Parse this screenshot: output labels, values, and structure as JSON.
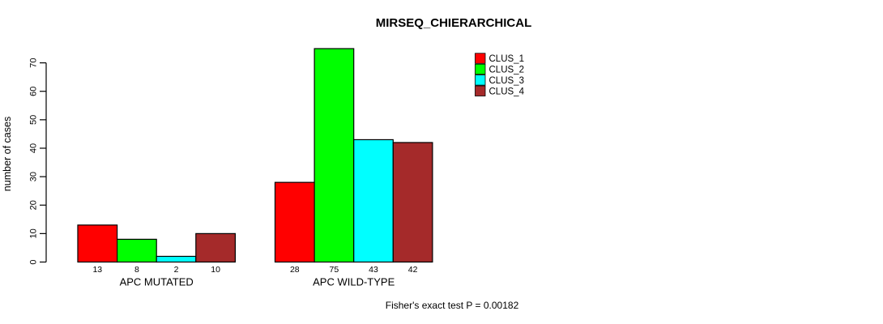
{
  "figure": {
    "background": "#FFFFFF",
    "text_color": "#000000",
    "bar_border_color": "#000000"
  },
  "chart_data": {
    "type": "bar",
    "title": "MIRSEQ_CHIERARCHICAL",
    "ylabel": "number of cases",
    "xlabel": "",
    "ylim": [
      0,
      75
    ],
    "yticks": [
      0,
      10,
      20,
      30,
      40,
      50,
      60,
      70
    ],
    "grid": false,
    "categories": [
      "APC MUTATED",
      "APC WILD-TYPE"
    ],
    "series": [
      {
        "name": "CLUS_1",
        "color": "#FF0000",
        "values": [
          13,
          28
        ]
      },
      {
        "name": "CLUS_2",
        "color": "#00FF00",
        "values": [
          8,
          75
        ]
      },
      {
        "name": "CLUS_3",
        "color": "#00FFFF",
        "values": [
          2,
          43
        ]
      },
      {
        "name": "CLUS_4",
        "color": "#A52A2A",
        "values": [
          10,
          42
        ]
      }
    ],
    "bar_value_labels": [
      [
        "13",
        "8",
        "2",
        "10"
      ],
      [
        "28",
        "75",
        "43",
        "42"
      ]
    ],
    "legend": {
      "position": "top-right",
      "entries": [
        "CLUS_1",
        "CLUS_2",
        "CLUS_3",
        "CLUS_4"
      ]
    },
    "annotation": "Fisher's exact test P = 0.00182"
  }
}
